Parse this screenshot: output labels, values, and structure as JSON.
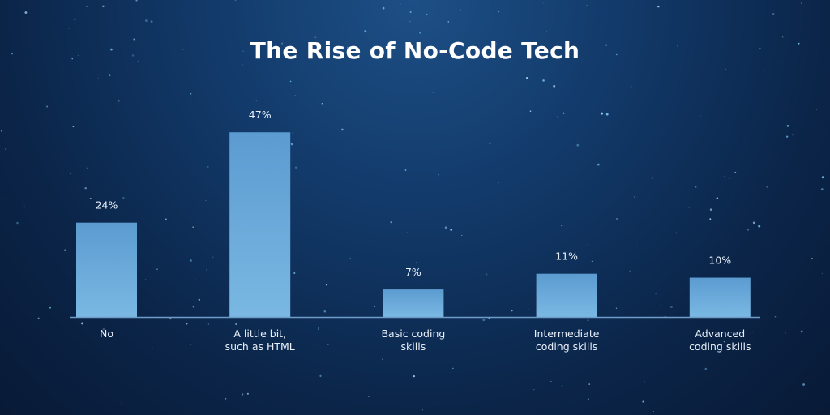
{
  "title": "The Rise of No-Code Tech",
  "chart_data": {
    "type": "bar",
    "title": "The Rise of No-Code Tech",
    "categories": [
      [
        "No"
      ],
      [
        "A little bit,",
        "such as HTML"
      ],
      [
        "Basic coding",
        "skills"
      ],
      [
        "Intermediate",
        "coding skills"
      ],
      [
        "Advanced",
        "coding skills"
      ]
    ],
    "values": [
      24,
      47,
      7,
      11,
      10
    ],
    "value_labels": [
      "24%",
      "47%",
      "7%",
      "11%",
      "10%"
    ],
    "xlabel": "",
    "ylabel": "",
    "ylim": [
      0,
      50
    ],
    "unit": "%",
    "grid": false,
    "legend": "none",
    "colors": {
      "bar_top": "#5b9bd0",
      "bar_bottom": "#7ab8e3",
      "axis": "#6d9cc9"
    }
  }
}
